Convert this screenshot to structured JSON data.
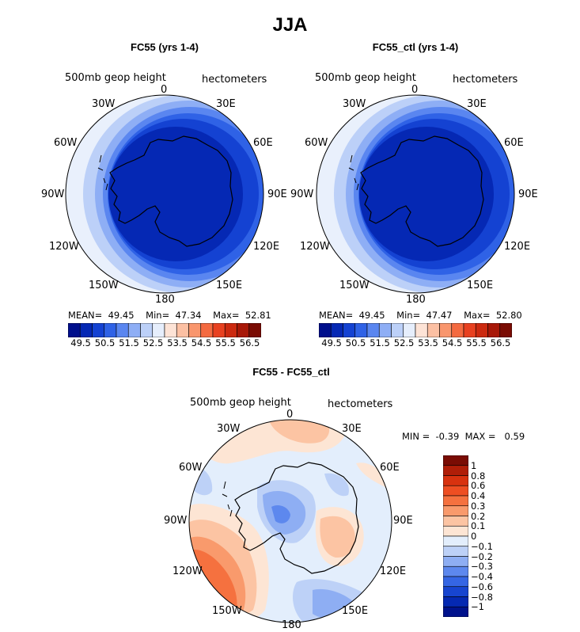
{
  "title": "JJA",
  "units": "hectometers",
  "field_label": "500mb geop height",
  "lon_labels": [
    "0",
    "30E",
    "60E",
    "90E",
    "120E",
    "150E",
    "180",
    "150W",
    "120W",
    "90W",
    "60W",
    "30W"
  ],
  "panels": [
    {
      "title": "FC55 (yrs 1-4)",
      "stats": {
        "mean_label": "MEAN=",
        "mean": "49.45",
        "min_label": "Min=",
        "min": "47.34",
        "max_label": "Max=",
        "max": "52.81"
      }
    },
    {
      "title": "FC55_ctl (yrs 1-4)",
      "stats": {
        "mean_label": "MEAN=",
        "mean": "49.45",
        "min_label": "Min=",
        "min": "47.47",
        "max_label": "Max=",
        "max": "52.80"
      }
    },
    {
      "title": "FC55 - FC55_ctl",
      "stats": {
        "min_label": "MIN =",
        "min": "-0.39",
        "max_label": "MAX =",
        "max": "0.59"
      }
    }
  ],
  "colorbar_abs": {
    "labels": [
      "49.5",
      "50.5",
      "51.5",
      "52.5",
      "53.5",
      "54.5",
      "55.5",
      "56.5"
    ],
    "colors": [
      "#000f8c",
      "#0528b4",
      "#1442d2",
      "#2f62e6",
      "#5a86f0",
      "#8eaef5",
      "#bcd0f8",
      "#e6eefc",
      "#fde3d6",
      "#fcc0a3",
      "#f9966d",
      "#f46a40",
      "#e84120",
      "#cc2a10",
      "#a81808",
      "#7a0c04"
    ]
  },
  "colorbar_diff": {
    "labels": [
      "1",
      "0.8",
      "0.6",
      "0.4",
      "0.3",
      "0.2",
      "0.1",
      "0",
      "−0.1",
      "−0.2",
      "−0.3",
      "−0.4",
      "−0.6",
      "−0.8",
      "−1"
    ],
    "colors": [
      "#7a0c04",
      "#b01e08",
      "#d8320f",
      "#ee4e22",
      "#f5713f",
      "#f99a6c",
      "#fcc4a3",
      "#fde5d4",
      "#e3eefc",
      "#bdd1f7",
      "#8eaef3",
      "#5d88ee",
      "#3566e4",
      "#1745d0",
      "#0529b2",
      "#00128c"
    ]
  }
}
